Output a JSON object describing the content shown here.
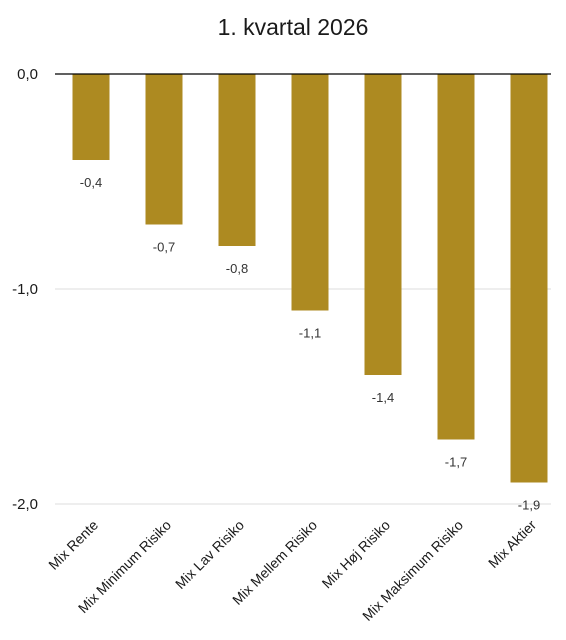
{
  "chart_data": {
    "type": "bar",
    "title": "1. kvartal 2026",
    "xlabel": "",
    "ylabel": "",
    "categories": [
      "Mix Rente",
      "Mix Minimum Risiko",
      "Mix Lav Risiko",
      "Mix Mellem Risiko",
      "Mix Høj Risiko",
      "Mix Maksimum Risiko",
      "Mix Aktier"
    ],
    "values": [
      -0.4,
      -0.7,
      -0.8,
      -1.1,
      -1.4,
      -1.7,
      -1.9
    ],
    "data_labels": [
      "-0,4",
      "-0,7",
      "-0,8",
      "-1,1",
      "-1,4",
      "-1,7",
      "-1,9"
    ],
    "ylim": [
      -2.0,
      0.0
    ],
    "yticks": [
      0.0,
      -1.0,
      -2.0
    ],
    "ytick_labels": [
      "0,0",
      "-1,0",
      "-2,0"
    ],
    "grid": true,
    "legend": "none",
    "bar_color": "#AD8A21"
  }
}
